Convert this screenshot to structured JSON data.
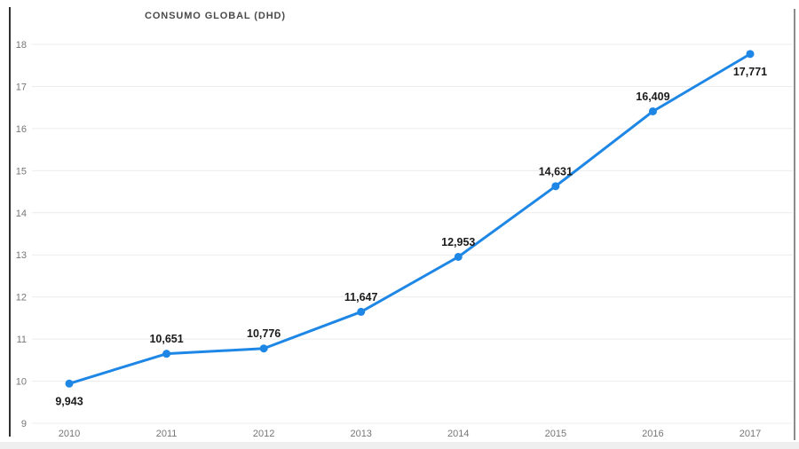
{
  "chart_data": {
    "type": "line",
    "title": "CONSUMO GLOBAL (DHD)",
    "x": [
      "2010",
      "2011",
      "2012",
      "2013",
      "2014",
      "2015",
      "2016",
      "2017"
    ],
    "values": [
      9.943,
      10.651,
      10.776,
      11.647,
      12.953,
      14.631,
      16.409,
      17.771
    ],
    "point_labels": [
      "9,943",
      "10,651",
      "10,776",
      "11,647",
      "12,953",
      "14,631",
      "16,409",
      "17,771"
    ],
    "label_side": [
      "below",
      "above",
      "above",
      "above",
      "above",
      "above",
      "above",
      "below"
    ],
    "xlabel": "",
    "ylabel": "",
    "ylim": [
      9,
      18
    ],
    "yticks": [
      9,
      10,
      11,
      12,
      13,
      14,
      15,
      16,
      17,
      18
    ],
    "grid": "horizontal-only",
    "legend": "none",
    "series_name": "Consumo global (DHD)"
  },
  "colors": {
    "line": "#1e87e5",
    "marker": "#1e87e5",
    "grid": "#ececec",
    "tick_text": "#767676",
    "point_label_text": "#1a1a1a",
    "title_text": "#4a4a4a",
    "left_border": "#2f2f2f",
    "right_border": "#8d8d8d"
  }
}
